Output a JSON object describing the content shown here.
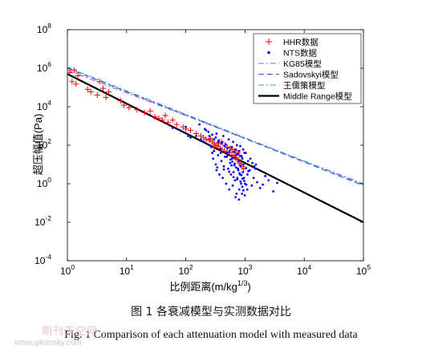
{
  "caption": {
    "cn": "图 1  各衰减模型与实测数据对比",
    "en": "Fig. 1  Comparison of each attenuation model with measured data"
  },
  "watermark": {
    "logo": "期刊天空网",
    "url": "www.qikansky.com"
  },
  "colors": {
    "hhr": "#ff0000",
    "nts": "#0000ff",
    "kg85": "#cc44cc",
    "sadovskyi": "#3355dd",
    "wang": "#22aadd",
    "middle": "#000000"
  },
  "chart_data": {
    "type": "scatter",
    "x_scale": "log",
    "y_scale": "log",
    "xlim": [
      1,
      100000
    ],
    "ylim": [
      0.0001,
      100000000
    ],
    "xlabel": "比例距离(m/kg",
    "xlabel_sup": "1/3",
    "xlabel_end": ")",
    "ylabel": "超压幅值(Pa)",
    "x_ticks": [
      {
        "base": "10",
        "exp": "0"
      },
      {
        "base": "10",
        "exp": "1"
      },
      {
        "base": "10",
        "exp": "2"
      },
      {
        "base": "10",
        "exp": "3"
      },
      {
        "base": "10",
        "exp": "4"
      },
      {
        "base": "10",
        "exp": "5"
      }
    ],
    "y_ticks": [
      {
        "base": "10",
        "exp": "-4"
      },
      {
        "base": "10",
        "exp": "-2"
      },
      {
        "base": "10",
        "exp": "0"
      },
      {
        "base": "10",
        "exp": "2"
      },
      {
        "base": "10",
        "exp": "4"
      },
      {
        "base": "10",
        "exp": "6"
      },
      {
        "base": "10",
        "exp": "8"
      }
    ],
    "grid": false,
    "legend_position": "top-right",
    "series": [
      {
        "name": "HHR数据",
        "kind": "scatter",
        "marker": "plus",
        "points": [
          [
            1.1,
            600000
          ],
          [
            1.2,
            200000
          ],
          [
            1.3,
            800000
          ],
          [
            1.4,
            150000
          ],
          [
            1.5,
            400000
          ],
          [
            2.2,
            80000
          ],
          [
            2.5,
            60000
          ],
          [
            3.2,
            40000
          ],
          [
            3.5,
            200000
          ],
          [
            4,
            90000
          ],
          [
            4.5,
            30000
          ],
          [
            5,
            60000
          ],
          [
            8,
            20000
          ],
          [
            9,
            12000
          ],
          [
            11,
            9000
          ],
          [
            15,
            7000
          ],
          [
            20,
            5000
          ],
          [
            25,
            6000
          ],
          [
            30,
            3000
          ],
          [
            35,
            2500
          ],
          [
            40,
            2000
          ],
          [
            45,
            3500
          ],
          [
            50,
            1500
          ],
          [
            60,
            2000
          ],
          [
            70,
            1200
          ],
          [
            90,
            900
          ],
          [
            100,
            700
          ],
          [
            120,
            600
          ],
          [
            150,
            400
          ],
          [
            180,
            300
          ],
          [
            200,
            250
          ],
          [
            220,
            200
          ],
          [
            250,
            180
          ],
          [
            280,
            150
          ],
          [
            300,
            120
          ],
          [
            320,
            100
          ],
          [
            350,
            90
          ],
          [
            380,
            70
          ],
          [
            400,
            60
          ],
          [
            450,
            50
          ],
          [
            500,
            45
          ],
          [
            550,
            40
          ],
          [
            600,
            30
          ],
          [
            650,
            25
          ],
          [
            700,
            20
          ],
          [
            750,
            18
          ],
          [
            800,
            12
          ],
          [
            850,
            10
          ],
          [
            900,
            8
          ],
          [
            950,
            6
          ],
          [
            300,
            80
          ],
          [
            400,
            150
          ],
          [
            500,
            80
          ],
          [
            600,
            60
          ],
          [
            700,
            40
          ],
          [
            800,
            30
          ],
          [
            260,
            220
          ],
          [
            360,
            130
          ],
          [
            460,
            100
          ],
          [
            560,
            70
          ],
          [
            660,
            50
          ],
          [
            760,
            40
          ]
        ]
      },
      {
        "name": "NTS数据",
        "kind": "scatter",
        "marker": "dot",
        "points": [
          [
            60,
            800
          ],
          [
            80,
            600
          ],
          [
            100,
            900
          ],
          [
            110,
            300
          ],
          [
            120,
            250
          ],
          [
            150,
            300
          ],
          [
            180,
            200
          ],
          [
            200,
            150
          ],
          [
            220,
            600
          ],
          [
            250,
            100
          ],
          [
            270,
            80
          ],
          [
            280,
            40
          ],
          [
            290,
            20
          ],
          [
            300,
            50
          ],
          [
            320,
            10
          ],
          [
            330,
            5
          ],
          [
            350,
            30
          ],
          [
            370,
            3
          ],
          [
            380,
            60
          ],
          [
            400,
            15
          ],
          [
            420,
            2
          ],
          [
            440,
            8
          ],
          [
            460,
            25
          ],
          [
            480,
            1
          ],
          [
            500,
            40
          ],
          [
            520,
            6
          ],
          [
            540,
            0.5
          ],
          [
            560,
            12
          ],
          [
            580,
            3
          ],
          [
            600,
            20
          ],
          [
            620,
            0.8
          ],
          [
            640,
            4
          ],
          [
            660,
            9
          ],
          [
            680,
            1.5
          ],
          [
            700,
            30
          ],
          [
            720,
            0.3
          ],
          [
            740,
            2
          ],
          [
            760,
            6
          ],
          [
            780,
            15
          ],
          [
            800,
            0.5
          ],
          [
            820,
            3
          ],
          [
            840,
            8
          ],
          [
            860,
            1
          ],
          [
            880,
            25
          ],
          [
            900,
            0.7
          ],
          [
            920,
            4
          ],
          [
            940,
            10
          ],
          [
            960,
            2
          ],
          [
            980,
            40
          ],
          [
            1000,
            1
          ],
          [
            1100,
            3
          ],
          [
            1200,
            5
          ],
          [
            1300,
            0.8
          ],
          [
            1400,
            2
          ],
          [
            1500,
            6
          ],
          [
            1600,
            1.2
          ],
          [
            1800,
            0.6
          ],
          [
            2000,
            0.9
          ],
          [
            2200,
            2.5
          ],
          [
            2500,
            1.5
          ],
          [
            3000,
            0.4
          ],
          [
            3500,
            1.1
          ],
          [
            250,
            300
          ],
          [
            300,
            200
          ],
          [
            350,
            150
          ],
          [
            400,
            120
          ],
          [
            450,
            90
          ],
          [
            500,
            70
          ],
          [
            550,
            50
          ],
          [
            600,
            80
          ],
          [
            650,
            45
          ],
          [
            700,
            60
          ],
          [
            750,
            35
          ],
          [
            800,
            50
          ],
          [
            850,
            28
          ],
          [
            900,
            20
          ],
          [
            330,
            400
          ],
          [
            430,
            300
          ],
          [
            530,
            200
          ],
          [
            630,
            150
          ],
          [
            730,
            100
          ],
          [
            830,
            90
          ],
          [
            930,
            60
          ],
          [
            1030,
            40
          ],
          [
            1130,
            15
          ],
          [
            1230,
            20
          ],
          [
            1330,
            12
          ],
          [
            1430,
            8
          ],
          [
            1530,
            10
          ],
          [
            170,
            1200
          ],
          [
            210,
            700
          ],
          [
            240,
            500
          ],
          [
            280,
            350
          ],
          [
            320,
            250
          ],
          [
            360,
            180
          ],
          [
            410,
            140
          ],
          [
            470,
            110
          ],
          [
            510,
            30
          ],
          [
            570,
            18
          ],
          [
            610,
            14
          ],
          [
            670,
            11
          ],
          [
            710,
            7
          ],
          [
            770,
            5
          ],
          [
            810,
            3.5
          ],
          [
            870,
            2.8
          ],
          [
            910,
            1.8
          ],
          [
            970,
            1.4
          ],
          [
            1050,
            0.9
          ],
          [
            390,
            40
          ],
          [
            490,
            25
          ],
          [
            590,
            9
          ],
          [
            690,
            0.2
          ],
          [
            790,
            0.15
          ],
          [
            890,
            0.3
          ],
          [
            990,
            0.25
          ],
          [
            1090,
            0.5
          ],
          [
            340,
            7
          ],
          [
            440,
            5.5
          ],
          [
            540,
            4.2
          ],
          [
            640,
            2.2
          ],
          [
            740,
            1.7
          ],
          [
            840,
            1.3
          ],
          [
            940,
            0.45
          ],
          [
            1040,
            6.5
          ],
          [
            1140,
            4.5
          ]
        ]
      },
      {
        "name": "KG85模型",
        "kind": "line",
        "style": "dashdot",
        "points": [
          [
            1,
            800000
          ],
          [
            100000,
            1
          ]
        ]
      },
      {
        "name": "Sadovskyi模型",
        "kind": "line",
        "style": "dashed",
        "points": [
          [
            1,
            1000000
          ],
          [
            100000,
            0.8
          ]
        ]
      },
      {
        "name": "王儒策模型",
        "kind": "line",
        "style": "dashdot",
        "points": [
          [
            1,
            1100000
          ],
          [
            100000,
            0.9
          ]
        ]
      },
      {
        "name": "Middle Range模型",
        "kind": "line",
        "style": "solid",
        "points": [
          [
            1,
            500000
          ],
          [
            100000,
            0.01
          ]
        ]
      }
    ]
  }
}
